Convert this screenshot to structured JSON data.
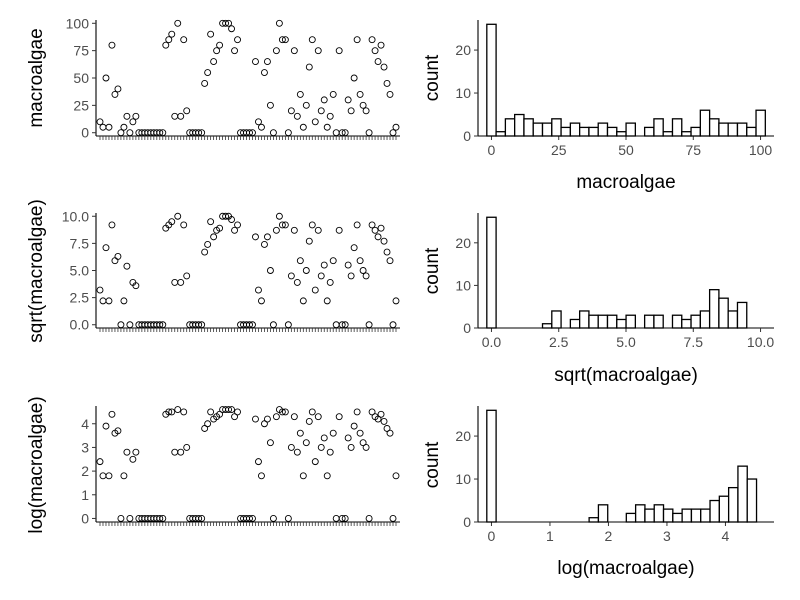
{
  "chart_data": [
    {
      "type": "scatter",
      "panel": "top-left",
      "ylabel": "macroalgae",
      "xlabel": "",
      "ylim": [
        -3,
        103
      ],
      "y_ticks": [
        0,
        25,
        50,
        75,
        100
      ],
      "y_tick_labels": [
        "0",
        "25",
        "50",
        "75",
        "100"
      ],
      "x_tick_count": 100,
      "y": [
        10,
        5,
        50,
        5,
        80,
        35,
        40,
        0,
        5,
        15,
        0,
        10,
        15,
        0,
        0,
        0,
        0,
        0,
        0,
        0,
        0,
        0,
        80,
        85,
        90,
        15,
        100,
        15,
        85,
        20,
        0,
        0,
        0,
        0,
        0,
        45,
        55,
        90,
        65,
        75,
        80,
        100,
        100,
        100,
        95,
        75,
        85,
        0,
        0,
        0,
        0,
        0,
        65,
        10,
        5,
        55,
        65,
        25,
        0,
        75,
        100,
        85,
        85,
        0,
        20,
        75,
        15,
        35,
        5,
        25,
        60,
        85,
        10,
        75,
        20,
        30,
        5,
        15,
        35,
        0,
        75,
        0,
        0,
        30,
        20,
        50,
        85,
        35,
        25,
        20,
        0,
        85,
        75,
        65,
        80,
        60,
        45,
        35,
        0,
        5
      ]
    },
    {
      "type": "bar",
      "panel": "top-right",
      "xlabel": "macroalgae",
      "ylabel": "count",
      "xlim": [
        -5,
        105
      ],
      "ylim": [
        0,
        27
      ],
      "x_ticks": [
        0,
        25,
        50,
        75,
        100
      ],
      "x_tick_labels": [
        "0",
        "25",
        "50",
        "75",
        "100"
      ],
      "y_ticks": [
        0,
        10,
        20
      ],
      "y_tick_labels": [
        "0",
        "10",
        "20"
      ],
      "bin_width": 3.45,
      "bin_start": -1.725,
      "counts": [
        26,
        1,
        4,
        5,
        4,
        3,
        3,
        4,
        2,
        3,
        2,
        2,
        3,
        2,
        1,
        3,
        0,
        2,
        4,
        1,
        4,
        1,
        2,
        6,
        4,
        3,
        3,
        3,
        2,
        6
      ]
    },
    {
      "type": "scatter",
      "panel": "middle-left",
      "ylabel": "sqrt(macroalgae)",
      "xlabel": "",
      "ylim": [
        -0.3,
        10.3
      ],
      "y_ticks": [
        0,
        2.5,
        5,
        7.5,
        10
      ],
      "y_tick_labels": [
        "0.0",
        "2.5",
        "5.0",
        "7.5",
        "10.0"
      ],
      "x_tick_count": 100,
      "y": [
        3.2,
        2.2,
        7.1,
        2.2,
        9.2,
        5.9,
        6.3,
        0.0,
        2.2,
        5.4,
        0.0,
        3.9,
        3.6,
        0.0,
        0.0,
        0.0,
        0.0,
        0.0,
        0.0,
        0.0,
        0.0,
        0.0,
        8.9,
        9.2,
        9.5,
        3.9,
        10.0,
        3.9,
        9.2,
        4.5,
        0.0,
        0.0,
        0.0,
        0.0,
        0.0,
        6.7,
        7.4,
        9.5,
        8.1,
        8.7,
        8.9,
        10.0,
        10.0,
        10.0,
        9.7,
        8.7,
        9.2,
        0.0,
        0.0,
        0.0,
        0.0,
        0.0,
        8.1,
        3.2,
        2.2,
        7.4,
        8.1,
        5.0,
        0.0,
        8.7,
        10.0,
        9.2,
        9.2,
        0.0,
        4.5,
        8.7,
        3.9,
        5.9,
        2.2,
        5.0,
        7.7,
        9.2,
        3.2,
        8.7,
        4.5,
        5.5,
        2.2,
        3.9,
        5.9,
        0.0,
        8.7,
        0.0,
        0.0,
        5.5,
        4.5,
        7.1,
        9.2,
        5.9,
        5.0,
        4.5,
        0.0,
        9.2,
        8.7,
        8.1,
        8.9,
        7.7,
        6.7,
        5.9,
        0.0,
        2.2
      ]
    },
    {
      "type": "bar",
      "panel": "middle-right",
      "xlabel": "sqrt(macroalgae)",
      "ylabel": "count",
      "xlim": [
        -0.5,
        10.5
      ],
      "ylim": [
        0,
        27
      ],
      "x_ticks": [
        0,
        2.5,
        5,
        7.5,
        10
      ],
      "x_tick_labels": [
        "0.0",
        "2.5",
        "5.0",
        "7.5",
        "10.0"
      ],
      "y_ticks": [
        0,
        10,
        20
      ],
      "y_tick_labels": [
        "0",
        "10",
        "20"
      ],
      "bin_width": 0.345,
      "bin_start": -0.1725,
      "counts": [
        26,
        0,
        0,
        0,
        0,
        0,
        1,
        4,
        0,
        2,
        4,
        3,
        3,
        3,
        2,
        3,
        0,
        3,
        3,
        0,
        3,
        2,
        3,
        4,
        9,
        7,
        4,
        6
      ]
    },
    {
      "type": "scatter",
      "panel": "bottom-left",
      "ylabel": "log(macroalgae)",
      "xlabel": "",
      "ylim": [
        -0.15,
        4.75
      ],
      "y_ticks": [
        0,
        1,
        2,
        3,
        4
      ],
      "y_tick_labels": [
        "0",
        "1",
        "2",
        "3",
        "4"
      ],
      "x_tick_count": 100,
      "y": [
        2.4,
        1.8,
        3.9,
        1.8,
        4.4,
        3.6,
        3.7,
        0.0,
        1.8,
        2.8,
        0.0,
        2.5,
        2.8,
        0.0,
        0.0,
        0.0,
        0.0,
        0.0,
        0.0,
        0.0,
        0.0,
        0.0,
        4.4,
        4.5,
        4.5,
        2.8,
        4.6,
        2.8,
        4.5,
        3.0,
        0.0,
        0.0,
        0.0,
        0.0,
        0.0,
        3.8,
        4.0,
        4.5,
        4.2,
        4.3,
        4.4,
        4.6,
        4.6,
        4.6,
        4.6,
        4.3,
        4.5,
        0.0,
        0.0,
        0.0,
        0.0,
        0.0,
        4.2,
        2.4,
        1.8,
        4.0,
        4.2,
        3.2,
        0.0,
        4.3,
        4.6,
        4.5,
        4.5,
        0.0,
        3.0,
        4.3,
        2.8,
        3.6,
        1.8,
        3.2,
        4.1,
        4.5,
        2.4,
        4.3,
        3.0,
        3.4,
        1.8,
        2.8,
        3.6,
        0.0,
        4.3,
        0.0,
        0.0,
        3.4,
        3.0,
        3.9,
        4.5,
        3.6,
        3.2,
        3.0,
        0.0,
        4.5,
        4.3,
        4.2,
        4.4,
        4.1,
        3.8,
        3.6,
        0.0,
        1.8
      ]
    },
    {
      "type": "bar",
      "panel": "bottom-right",
      "xlabel": "log(macroalgae)",
      "ylabel": "count",
      "xlim": [
        -0.23,
        4.83
      ],
      "ylim": [
        0,
        27
      ],
      "x_ticks": [
        0,
        1,
        2,
        3,
        4
      ],
      "x_tick_labels": [
        "0",
        "1",
        "2",
        "3",
        "4"
      ],
      "y_ticks": [
        0,
        10,
        20
      ],
      "y_tick_labels": [
        "0",
        "10",
        "20"
      ],
      "bin_width": 0.159,
      "bin_start": -0.0795,
      "counts": [
        26,
        0,
        0,
        0,
        0,
        0,
        0,
        0,
        0,
        0,
        0,
        1,
        4,
        0,
        0,
        2,
        4,
        3,
        4,
        3,
        2,
        3,
        3,
        3,
        5,
        6,
        8,
        13,
        10
      ]
    }
  ]
}
